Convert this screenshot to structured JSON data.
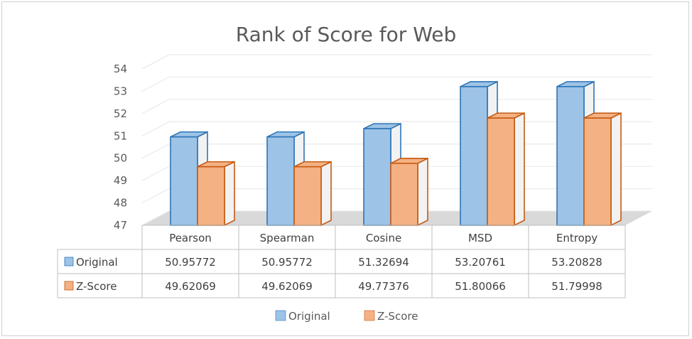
{
  "chart_data": {
    "type": "bar",
    "title": "Rank of Score for Web",
    "categories": [
      "Pearson",
      "Spearman",
      "Cosine",
      "MSD",
      "Entropy"
    ],
    "series": [
      {
        "name": "Original",
        "values": [
          50.95772,
          50.95772,
          51.32694,
          53.20761,
          53.20828
        ],
        "labels": [
          "50.95772",
          "50.95772",
          "51.32694",
          "53.20761",
          "53.20828"
        ],
        "color": "#9dc3e6",
        "edge": "#2e75b6"
      },
      {
        "name": "Z-Score",
        "values": [
          49.62069,
          49.62069,
          49.77376,
          51.80066,
          51.79998
        ],
        "labels": [
          "49.62069",
          "49.62069",
          "49.77376",
          "51.80066",
          "51.79998"
        ],
        "color": "#f4b183",
        "edge": "#c55a11"
      }
    ],
    "ylim": [
      47,
      54
    ],
    "yticks": [
      "47",
      "48",
      "49",
      "50",
      "51",
      "52",
      "53",
      "54"
    ],
    "grid": true,
    "style": "3d clustered column with data table",
    "legend": "bottom"
  }
}
